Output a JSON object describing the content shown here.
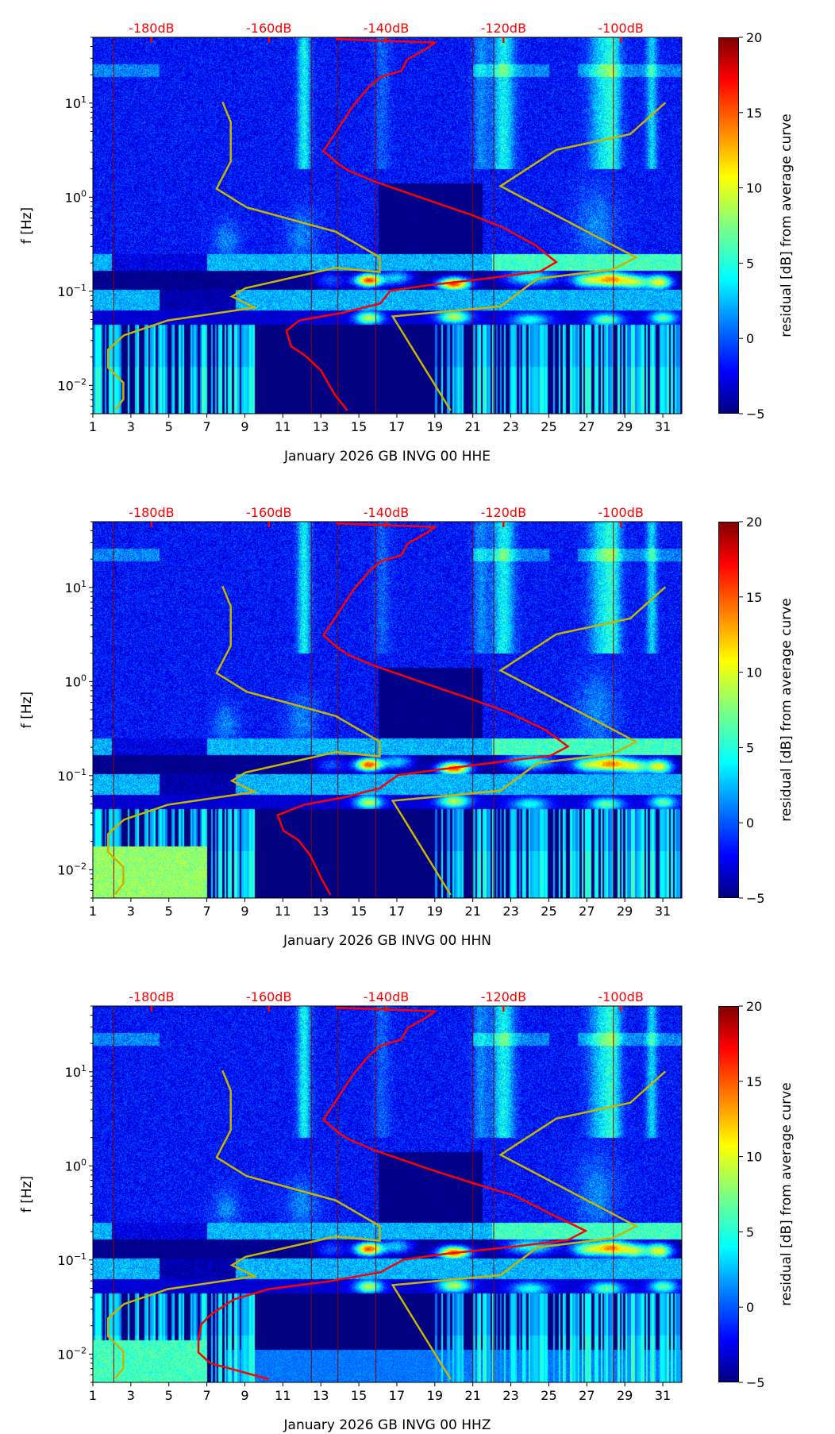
{
  "chart_data": {
    "type": "heatmap",
    "x_axis": {
      "range_days": [
        1,
        32
      ],
      "ticks": [
        1,
        3,
        5,
        7,
        9,
        11,
        13,
        15,
        17,
        19,
        21,
        23,
        25,
        27,
        29,
        31
      ]
    },
    "top_axis": {
      "range_db": [
        -190,
        -89.6
      ],
      "ticks": [
        -180,
        -160,
        -140,
        -120,
        -100
      ],
      "tick_labels": [
        "-180dB",
        "-160dB",
        "-140dB",
        "-120dB",
        "-100dB"
      ],
      "color": "#ff0000"
    },
    "y_axis": {
      "label": "f [Hz]",
      "scale": "log",
      "range_hz": [
        0.005,
        50
      ],
      "tick_base": "10",
      "tick_exponents": [
        "−2",
        "−1",
        "0",
        "1"
      ]
    },
    "colorbar": {
      "label": "residual [dB] from average curve",
      "range": [
        -5,
        20
      ],
      "ticks": [
        "−5",
        "0",
        "5",
        "10",
        "15",
        "20"
      ],
      "colormap": "jet"
    },
    "gap_lines_days": [
      2.1,
      12.5,
      13.9,
      15.9,
      21.0,
      22.1,
      28.4
    ],
    "nlnm": {
      "color": "#c8b400",
      "points": [
        [
          -167.9,
          10.3
        ],
        [
          -166.5,
          6.3
        ],
        [
          -166.5,
          2.4
        ],
        [
          -168.9,
          1.23
        ],
        [
          -163.8,
          0.78
        ],
        [
          -148.6,
          0.43
        ],
        [
          -141.1,
          0.23
        ],
        [
          -141.1,
          0.16
        ],
        [
          -148.6,
          0.178
        ],
        [
          -164.0,
          0.108
        ],
        [
          -166.3,
          0.088
        ],
        [
          -162.4,
          0.067
        ],
        [
          -177.2,
          0.049
        ],
        [
          -184.7,
          0.034
        ],
        [
          -187.4,
          0.024
        ],
        [
          -187.4,
          0.0154
        ],
        [
          -184.8,
          0.0107
        ],
        [
          -184.8,
          0.0071
        ],
        [
          -186.2,
          0.0055
        ]
      ]
    },
    "nhnm": {
      "color": "#c8b400",
      "points": [
        [
          -92.4,
          10.1
        ],
        [
          -98.4,
          4.68
        ],
        [
          -111.0,
          3.18
        ],
        [
          -120.5,
          1.31
        ],
        [
          -97.4,
          0.229
        ],
        [
          -101.4,
          0.17
        ],
        [
          -114.2,
          0.136
        ],
        [
          -120.5,
          0.069
        ],
        [
          -138.9,
          0.054
        ],
        [
          -129.0,
          0.0054
        ]
      ]
    },
    "panels": [
      {
        "xlabel": "January 2026 GB INVG 00 HHE",
        "psd_curve": [
          [
            -148.6,
            48
          ],
          [
            -131.7,
            44
          ],
          [
            -132.8,
            39
          ],
          [
            -136.4,
            29
          ],
          [
            -137.4,
            22
          ],
          [
            -140.9,
            19
          ],
          [
            -142.9,
            14.9
          ],
          [
            -145.6,
            9.4
          ],
          [
            -148.3,
            5.2
          ],
          [
            -150.7,
            3.1
          ],
          [
            -148.3,
            2.3
          ],
          [
            -146.5,
            1.93
          ],
          [
            -142.0,
            1.47
          ],
          [
            -132.8,
            0.93
          ],
          [
            -125.5,
            0.65
          ],
          [
            -120.2,
            0.48
          ],
          [
            -114.6,
            0.31
          ],
          [
            -111.0,
            0.204
          ],
          [
            -113.7,
            0.163
          ],
          [
            -121.9,
            0.139
          ],
          [
            -132.8,
            0.116
          ],
          [
            -139.3,
            0.101
          ],
          [
            -141.0,
            0.074
          ],
          [
            -147.5,
            0.059
          ],
          [
            -154.8,
            0.049
          ],
          [
            -157.0,
            0.038
          ],
          [
            -156.2,
            0.026
          ],
          [
            -153.8,
            0.0207
          ],
          [
            -151.1,
            0.0144
          ],
          [
            -148.8,
            0.008
          ],
          [
            -146.6,
            0.0054
          ]
        ]
      },
      {
        "xlabel": "January 2026 GB INVG 00 HHN",
        "psd_curve": [
          [
            -148.6,
            48
          ],
          [
            -131.7,
            44
          ],
          [
            -132.8,
            39
          ],
          [
            -136.4,
            29
          ],
          [
            -137.4,
            22
          ],
          [
            -140.9,
            19
          ],
          [
            -142.9,
            14.9
          ],
          [
            -145.6,
            9.4
          ],
          [
            -148.3,
            5.2
          ],
          [
            -150.7,
            3.1
          ],
          [
            -148.3,
            2.3
          ],
          [
            -146.5,
            1.93
          ],
          [
            -142.0,
            1.47
          ],
          [
            -132.8,
            0.93
          ],
          [
            -125.5,
            0.65
          ],
          [
            -119.5,
            0.48
          ],
          [
            -113.0,
            0.31
          ],
          [
            -109.0,
            0.204
          ],
          [
            -112.0,
            0.163
          ],
          [
            -121.0,
            0.139
          ],
          [
            -131.0,
            0.116
          ],
          [
            -138.0,
            0.101
          ],
          [
            -141.0,
            0.074
          ],
          [
            -147.0,
            0.059
          ],
          [
            -154.0,
            0.049
          ],
          [
            -158.5,
            0.038
          ],
          [
            -157.5,
            0.026
          ],
          [
            -155.0,
            0.0207
          ],
          [
            -153.0,
            0.0144
          ],
          [
            -151.0,
            0.008
          ],
          [
            -149.5,
            0.0054
          ]
        ]
      },
      {
        "xlabel": "January 2026 GB INVG 00 HHZ",
        "psd_curve": [
          [
            -148.6,
            48
          ],
          [
            -131.7,
            44
          ],
          [
            -132.8,
            39
          ],
          [
            -136.4,
            29
          ],
          [
            -137.4,
            22
          ],
          [
            -140.9,
            19
          ],
          [
            -142.9,
            14.9
          ],
          [
            -145.6,
            9.4
          ],
          [
            -148.3,
            5.2
          ],
          [
            -150.7,
            3.1
          ],
          [
            -148.3,
            2.3
          ],
          [
            -146.5,
            1.93
          ],
          [
            -142.0,
            1.47
          ],
          [
            -132.8,
            0.93
          ],
          [
            -125.0,
            0.65
          ],
          [
            -118.0,
            0.48
          ],
          [
            -112.0,
            0.31
          ],
          [
            -106.0,
            0.204
          ],
          [
            -109.0,
            0.163
          ],
          [
            -118.0,
            0.139
          ],
          [
            -130.0,
            0.116
          ],
          [
            -137.0,
            0.101
          ],
          [
            -141.0,
            0.074
          ],
          [
            -150.0,
            0.059
          ],
          [
            -160.0,
            0.049
          ],
          [
            -166.0,
            0.038
          ],
          [
            -170.0,
            0.026
          ],
          [
            -171.5,
            0.0207
          ],
          [
            -172.0,
            0.0144
          ],
          [
            -172.0,
            0.0104
          ],
          [
            -170.0,
            0.008
          ],
          [
            -160.0,
            0.0054
          ]
        ]
      }
    ]
  }
}
